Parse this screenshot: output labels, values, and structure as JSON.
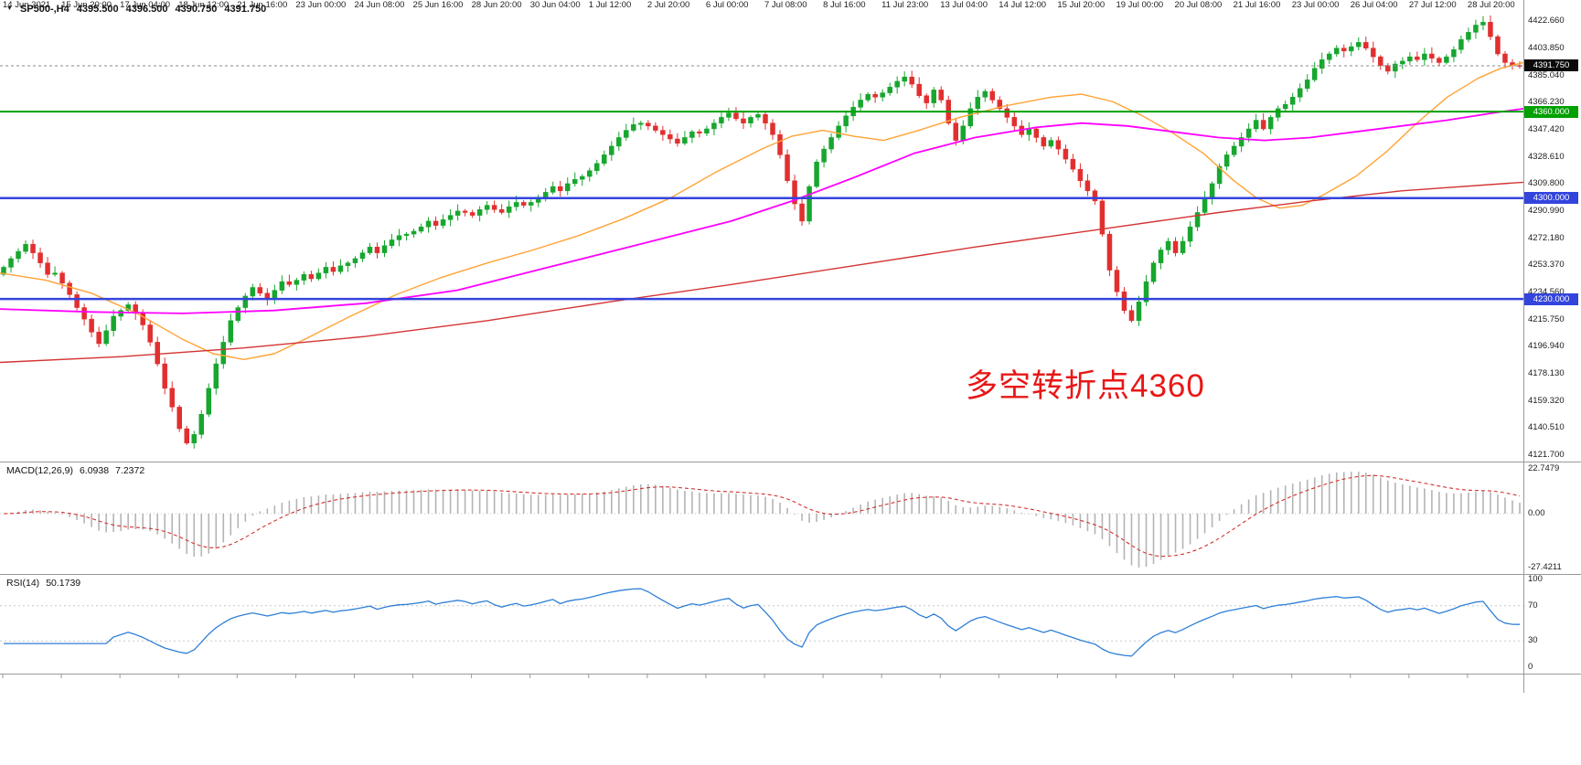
{
  "title": {
    "symbol_timeframe": "SP500-,H4",
    "open": "4395.500",
    "high": "4396.500",
    "low": "4390.750",
    "close": "4391.750"
  },
  "icons": {
    "collapse_triangle": "▼"
  },
  "annotation": {
    "text": "多空转折点4360",
    "color": "#e81717"
  },
  "colors": {
    "up": "#17a62e",
    "down": "#e12f2f",
    "ma_fast": "#ffa335",
    "ma_medium": "#ff00ff",
    "ma_slow": "#d43434",
    "hline_green": "#00a000",
    "hline_blue": "#3344dd",
    "current_line": "#8a8a8a",
    "current_badge": "#0a0a0a",
    "macd_hist": "#b4b4b4",
    "macd_signal": "#d33131",
    "rsi_line": "#2f7fd8",
    "separator": "#9a9a9a",
    "level_dots": "#c8c8c8",
    "axis_text": "#1a1a1a"
  },
  "chart_data": [
    {
      "type": "candlestick",
      "title": "SP500-,H4",
      "timeframe": "H4",
      "ohlc_display": {
        "open": "4395.500",
        "high": "4396.500",
        "low": "4390.750",
        "close": "4391.750"
      },
      "y_range": [
        4117.2,
        4437.4
      ],
      "y_axis_labels": [
        "4422.660",
        "4403.850",
        "4385.040",
        "4366.230",
        "4347.420",
        "4328.610",
        "4309.800",
        "4290.990",
        "4272.180",
        "4253.370",
        "4234.560",
        "4215.750",
        "4196.940",
        "4178.130",
        "4159.320",
        "4140.510",
        "4121.700"
      ],
      "first_open": 4247,
      "closes": [
        4252,
        4258,
        4263,
        4268,
        4262,
        4255,
        4247,
        4248,
        4241,
        4233,
        4224,
        4216,
        4207,
        4199,
        4208,
        4218,
        4222,
        4226,
        4220,
        4212,
        4200,
        4185,
        4168,
        4155,
        4140,
        4130,
        4136,
        4150,
        4168,
        4185,
        4200,
        4215,
        4224,
        4232,
        4238,
        4234,
        4230,
        4236,
        4242,
        4240,
        4243,
        4247,
        4244,
        4248,
        4252,
        4249,
        4253,
        4255,
        4258,
        4262,
        4266,
        4262,
        4267,
        4271,
        4274,
        4275,
        4277,
        4280,
        4284,
        4281,
        4285,
        4288,
        4291,
        4290,
        4288,
        4292,
        4295,
        4292,
        4290,
        4294,
        4297,
        4295,
        4297,
        4300,
        4304,
        4308,
        4305,
        4310,
        4313,
        4315,
        4319,
        4324,
        4330,
        4336,
        4342,
        4347,
        4351,
        4352,
        4350,
        4347,
        4344,
        4341,
        4338,
        4342,
        4346,
        4345,
        4348,
        4352,
        4356,
        4359,
        4355,
        4352,
        4356,
        4358,
        4352,
        4344,
        4330,
        4312,
        4296,
        4284,
        4308,
        4325,
        4334,
        4342,
        4350,
        4357,
        4363,
        4368,
        4372,
        4370,
        4373,
        4377,
        4381,
        4384,
        4379,
        4371,
        4366,
        4375,
        4368,
        4352,
        4340,
        4350,
        4362,
        4370,
        4374,
        4368,
        4362,
        4356,
        4350,
        4344,
        4348,
        4342,
        4336,
        4340,
        4334,
        4327,
        4320,
        4312,
        4305,
        4298,
        4275,
        4250,
        4235,
        4222,
        4215,
        4228,
        4242,
        4255,
        4264,
        4270,
        4262,
        4270,
        4280,
        4290,
        4300,
        4310,
        4322,
        4330,
        4336,
        4342,
        4348,
        4354,
        4348,
        4356,
        4362,
        4365,
        4370,
        4376,
        4382,
        4390,
        4396,
        4400,
        4404,
        4402,
        4405,
        4408,
        4404,
        4398,
        4392,
        4388,
        4393,
        4395,
        4398,
        4396,
        4400,
        4397,
        4394,
        4398,
        4403,
        4410,
        4415,
        4420,
        4422,
        4412,
        4400,
        4394,
        4392,
        4391.75
      ],
      "moving_averages": [
        {
          "name": "ma-fast-orange",
          "color_key": "ma_fast",
          "width": 1.4,
          "points": [
            [
              0,
              4248
            ],
            [
              0.03,
              4243
            ],
            [
              0.06,
              4234
            ],
            [
              0.09,
              4220
            ],
            [
              0.12,
              4202
            ],
            [
              0.14,
              4192
            ],
            [
              0.16,
              4188
            ],
            [
              0.18,
              4192
            ],
            [
              0.2,
              4202
            ],
            [
              0.23,
              4218
            ],
            [
              0.26,
              4233
            ],
            [
              0.29,
              4245
            ],
            [
              0.32,
              4255
            ],
            [
              0.35,
              4264
            ],
            [
              0.38,
              4274
            ],
            [
              0.41,
              4286
            ],
            [
              0.44,
              4300
            ],
            [
              0.47,
              4318
            ],
            [
              0.5,
              4334
            ],
            [
              0.52,
              4343
            ],
            [
              0.54,
              4347
            ],
            [
              0.56,
              4343
            ],
            [
              0.58,
              4340
            ],
            [
              0.6,
              4346
            ],
            [
              0.63,
              4356
            ],
            [
              0.66,
              4364
            ],
            [
              0.69,
              4370
            ],
            [
              0.71,
              4372
            ],
            [
              0.73,
              4367
            ],
            [
              0.75,
              4357
            ],
            [
              0.77,
              4345
            ],
            [
              0.79,
              4331
            ],
            [
              0.81,
              4312
            ],
            [
              0.825,
              4300
            ],
            [
              0.84,
              4293
            ],
            [
              0.855,
              4295
            ],
            [
              0.87,
              4303
            ],
            [
              0.89,
              4315
            ],
            [
              0.91,
              4332
            ],
            [
              0.93,
              4352
            ],
            [
              0.95,
              4370
            ],
            [
              0.97,
              4383
            ],
            [
              0.985,
              4390
            ],
            [
              1,
              4394
            ]
          ]
        },
        {
          "name": "ma-medium-magenta",
          "color_key": "ma_medium",
          "width": 1.8,
          "points": [
            [
              0,
              4223
            ],
            [
              0.06,
              4221
            ],
            [
              0.12,
              4220
            ],
            [
              0.18,
              4222
            ],
            [
              0.24,
              4227
            ],
            [
              0.3,
              4236
            ],
            [
              0.36,
              4252
            ],
            [
              0.42,
              4268
            ],
            [
              0.48,
              4284
            ],
            [
              0.52,
              4298
            ],
            [
              0.56,
              4314
            ],
            [
              0.6,
              4331
            ],
            [
              0.64,
              4342
            ],
            [
              0.68,
              4349
            ],
            [
              0.71,
              4352
            ],
            [
              0.74,
              4350
            ],
            [
              0.77,
              4346
            ],
            [
              0.8,
              4342
            ],
            [
              0.83,
              4340
            ],
            [
              0.86,
              4342
            ],
            [
              0.89,
              4346
            ],
            [
              0.92,
              4350
            ],
            [
              0.95,
              4354
            ],
            [
              0.98,
              4359
            ],
            [
              1,
              4362
            ]
          ]
        },
        {
          "name": "ma-slow-red",
          "color_key": "ma_slow",
          "width": 1.4,
          "points": [
            [
              0,
              4186
            ],
            [
              0.08,
              4190
            ],
            [
              0.16,
              4196
            ],
            [
              0.24,
              4204
            ],
            [
              0.32,
              4215
            ],
            [
              0.4,
              4228
            ],
            [
              0.48,
              4240
            ],
            [
              0.56,
              4253
            ],
            [
              0.64,
              4266
            ],
            [
              0.72,
              4278
            ],
            [
              0.8,
              4290
            ],
            [
              0.86,
              4298
            ],
            [
              0.92,
              4305
            ],
            [
              1,
              4311
            ]
          ]
        }
      ],
      "hlines": [
        {
          "price": 4360.0,
          "label": "4360.000",
          "color_key": "hline_green",
          "width": 2
        },
        {
          "price": 4300.0,
          "label": "4300.000",
          "color_key": "hline_blue",
          "width": 2.5
        },
        {
          "price": 4230.0,
          "label": "4230.000",
          "color_key": "hline_blue",
          "width": 2.5
        }
      ],
      "current_price": {
        "value": 4391.75,
        "label": "4391.750"
      }
    },
    {
      "type": "macd-histogram",
      "label": "MACD(12,26,9)",
      "value_main": "6.0938",
      "value_signal": "7.2372",
      "params": [
        12,
        26,
        9
      ],
      "y_axis_labels": [
        "22.7479",
        "0.00",
        "-27.4211"
      ],
      "y_axis_values": [
        22.7479,
        0,
        -27.4211
      ],
      "y_range": [
        -30.7,
        26.5
      ],
      "scale_max_pos": 22.7479,
      "scale_max_neg": 27.4211
    },
    {
      "type": "line",
      "label": "RSI(14)",
      "value": "50.1739",
      "period": 14,
      "levels": [
        70,
        30
      ],
      "y_axis_labels": [
        "100",
        "70",
        "30",
        "0"
      ],
      "y_axis_values": [
        100,
        70,
        30,
        0
      ],
      "y_range": [
        -7,
        106
      ]
    }
  ],
  "time_axis": {
    "labels": [
      "14 Jun 2021",
      "15 Jun 20:00",
      "17 Jun 04:00",
      "18 Jun 12:00",
      "21 Jun 16:00",
      "23 Jun 00:00",
      "24 Jun 08:00",
      "25 Jun 16:00",
      "28 Jun 20:00",
      "30 Jun 04:00",
      "1 Jul 12:00",
      "2 Jul 20:00",
      "6 Jul 00:00",
      "7 Jul 08:00",
      "8 Jul 16:00",
      "11 Jul 23:00",
      "13 Jul 04:00",
      "14 Jul 12:00",
      "15 Jul 20:00",
      "19 Jul 00:00",
      "20 Jul 08:00",
      "21 Jul 16:00",
      "23 Jul 00:00",
      "26 Jul 04:00",
      "27 Jul 12:00",
      "28 Jul 20:00"
    ]
  }
}
